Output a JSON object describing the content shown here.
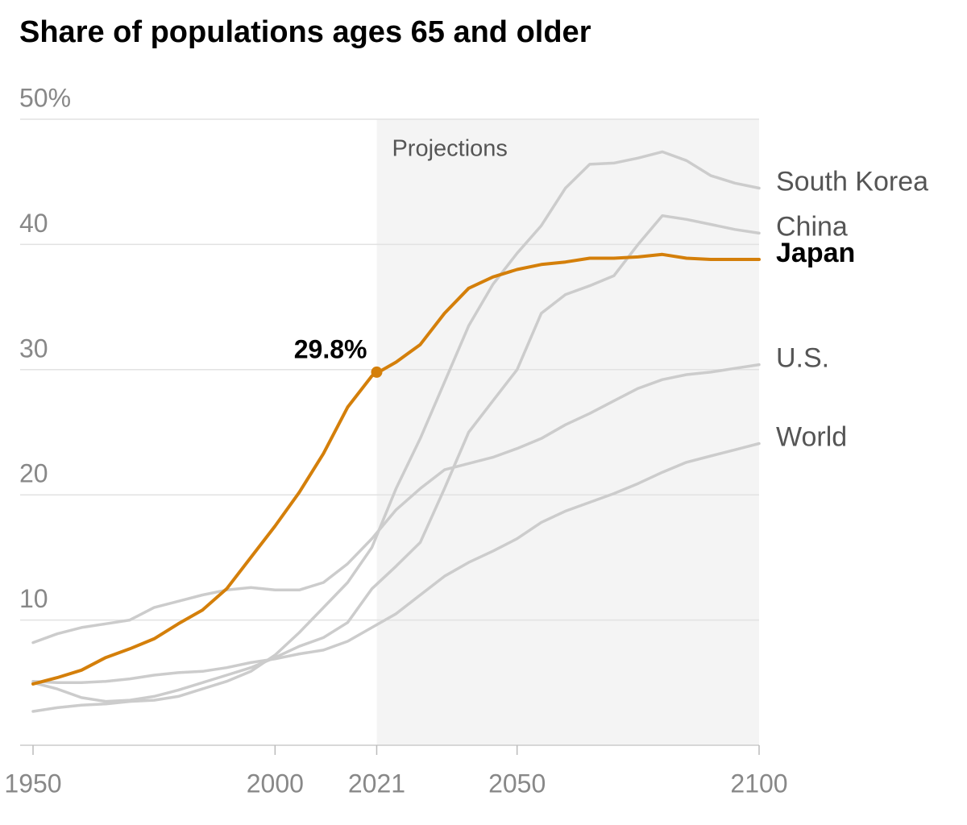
{
  "chart_data": {
    "type": "line",
    "title": "Share of populations ages 65 and older",
    "x": [
      1950,
      1955,
      1960,
      1965,
      1970,
      1975,
      1980,
      1985,
      1990,
      1995,
      2000,
      2005,
      2010,
      2015,
      2020,
      2025,
      2030,
      2035,
      2040,
      2045,
      2050,
      2055,
      2060,
      2065,
      2070,
      2075,
      2080,
      2085,
      2090,
      2095,
      2100
    ],
    "series": [
      {
        "name": "South Korea",
        "color": "#cccccc",
        "values": [
          2.7,
          3.0,
          3.2,
          3.3,
          3.5,
          3.6,
          3.9,
          4.5,
          5.1,
          5.9,
          7.2,
          9.0,
          11.0,
          13.0,
          15.8,
          20.5,
          24.5,
          29.0,
          33.5,
          36.8,
          39.3,
          41.5,
          44.5,
          46.4,
          46.5,
          46.9,
          47.4,
          46.7,
          45.5,
          44.9,
          44.5
        ]
      },
      {
        "name": "China",
        "color": "#cccccc",
        "values": [
          5.0,
          4.5,
          3.8,
          3.5,
          3.6,
          3.9,
          4.4,
          5.0,
          5.6,
          6.2,
          7.0,
          7.9,
          8.6,
          9.8,
          12.5,
          14.3,
          16.2,
          20.5,
          25.0,
          27.5,
          30.0,
          34.5,
          36.0,
          36.7,
          37.5,
          40.0,
          42.3,
          42.0,
          41.6,
          41.2,
          40.9
        ]
      },
      {
        "name": "U.S.",
        "color": "#cccccc",
        "values": [
          8.2,
          8.9,
          9.4,
          9.7,
          10.0,
          11.0,
          11.5,
          12.0,
          12.4,
          12.6,
          12.4,
          12.4,
          13.0,
          14.5,
          16.5,
          18.8,
          20.5,
          22.0,
          22.5,
          23.0,
          23.7,
          24.5,
          25.6,
          26.5,
          27.5,
          28.5,
          29.2,
          29.6,
          29.8,
          30.1,
          30.4
        ]
      },
      {
        "name": "World",
        "color": "#cccccc",
        "values": [
          5.1,
          5.0,
          5.0,
          5.1,
          5.3,
          5.6,
          5.8,
          5.9,
          6.2,
          6.6,
          6.9,
          7.3,
          7.6,
          8.3,
          9.4,
          10.5,
          12.0,
          13.5,
          14.6,
          15.5,
          16.5,
          17.8,
          18.7,
          19.4,
          20.1,
          20.9,
          21.8,
          22.6,
          23.1,
          23.6,
          24.1
        ]
      },
      {
        "name": "Japan",
        "color": "#d47f0a",
        "highlight": true,
        "values": [
          4.9,
          5.4,
          6.0,
          7.0,
          7.7,
          8.5,
          9.7,
          10.8,
          12.5,
          15.0,
          17.5,
          20.2,
          23.3,
          27.0,
          29.5,
          30.6,
          32.0,
          34.5,
          36.5,
          37.4,
          38.0,
          38.4,
          38.6,
          38.9,
          38.9,
          39.0,
          39.2,
          38.9,
          38.8,
          38.8,
          38.8
        ]
      }
    ],
    "annotation": {
      "x": 2021,
      "value": 29.8,
      "label": "29.8%"
    },
    "projections": {
      "label": "Projections",
      "from": 2021,
      "to": 2100
    },
    "xlim": [
      1950,
      2100
    ],
    "xticks": [
      1950,
      2000,
      2021,
      2050,
      2100
    ],
    "ylim": [
      0,
      50
    ],
    "yticks": [
      10,
      20,
      30,
      40,
      {
        "value": 50,
        "label": "50%"
      }
    ],
    "grid": true
  }
}
